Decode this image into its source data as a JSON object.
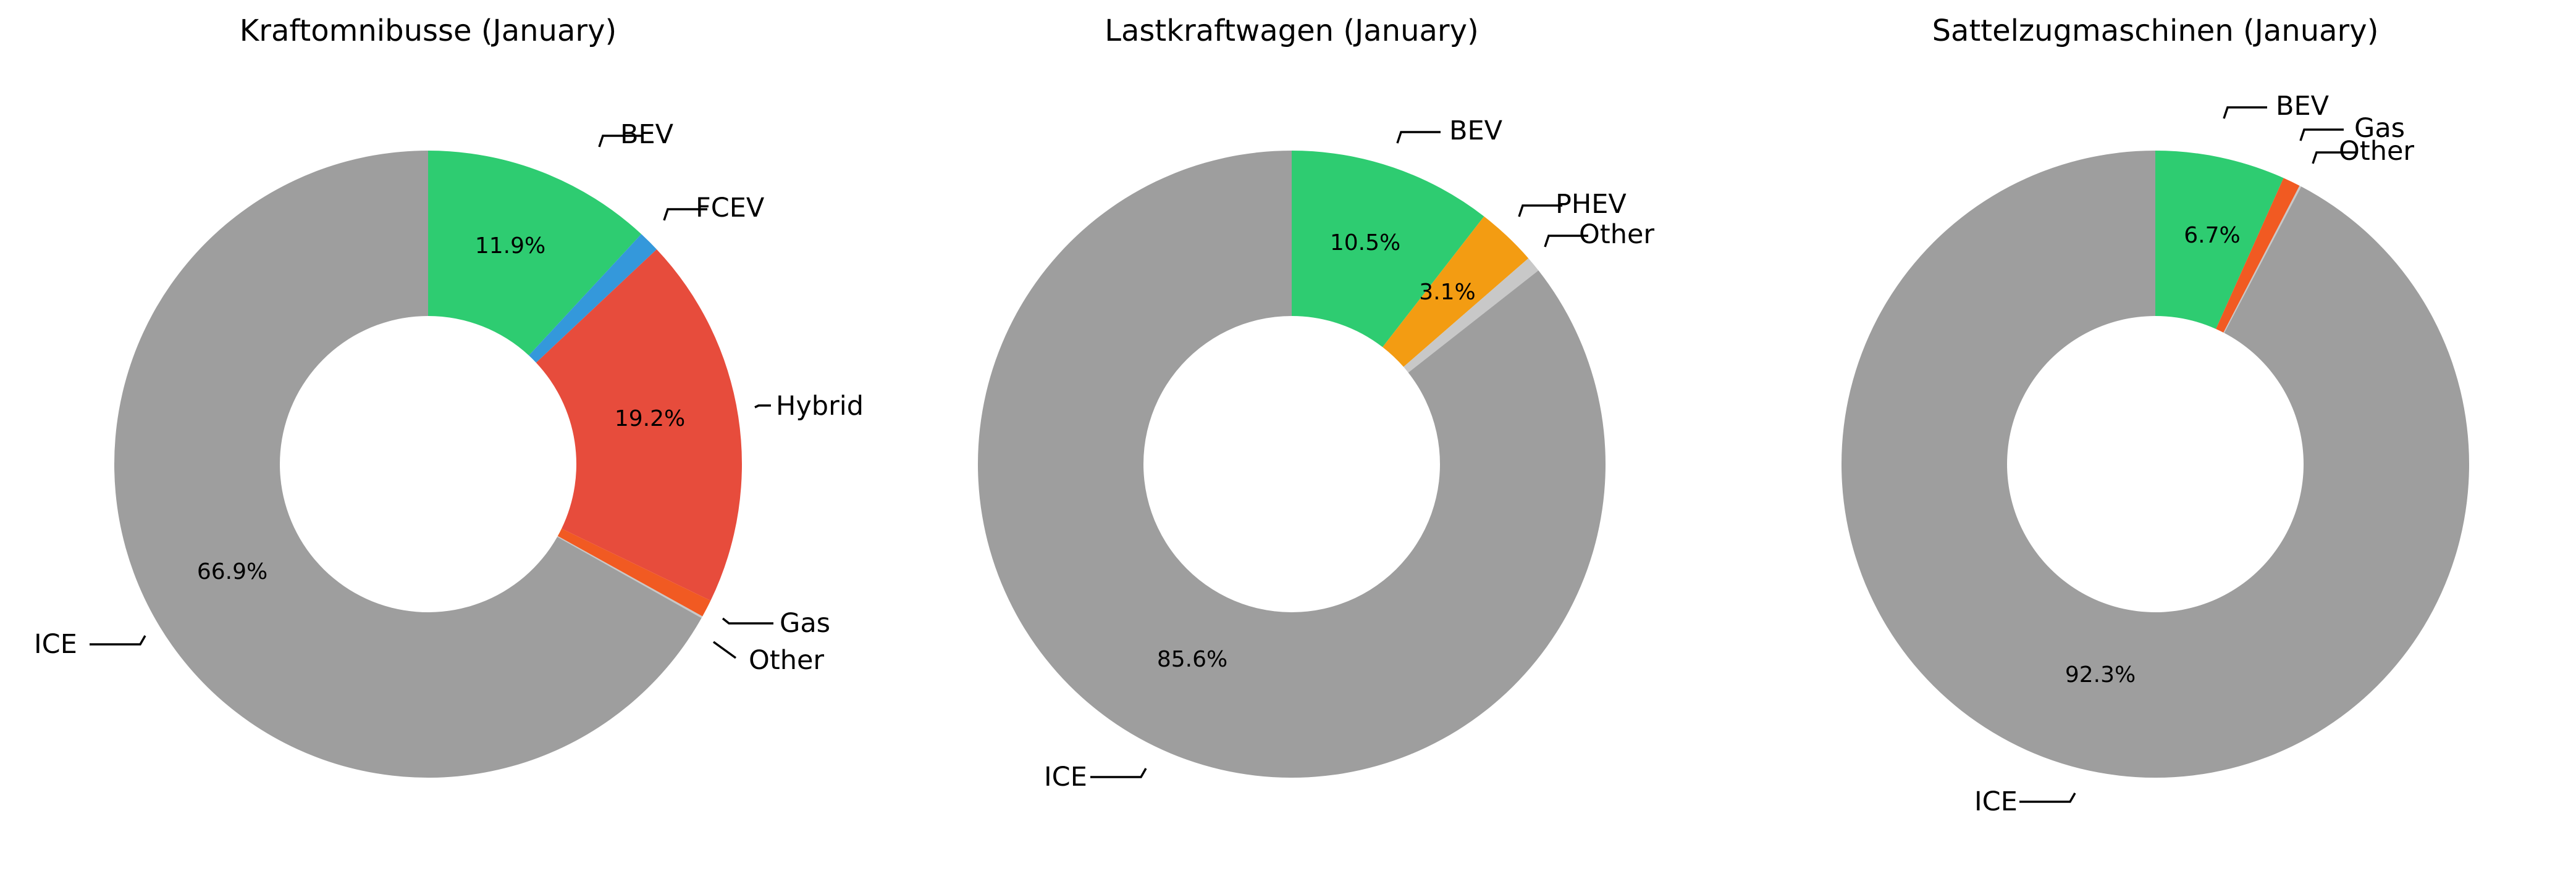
{
  "chart_data": [
    {
      "type": "pie",
      "style": "donut",
      "title": "Kraftomnibusse (January)",
      "series": [
        {
          "name": "BEV",
          "value": 11.9,
          "pct_label": "11.9%",
          "color": "#2ecc71"
        },
        {
          "name": "FCEV",
          "value": 1.1,
          "pct_label": "",
          "color": "#3498db"
        },
        {
          "name": "Hybrid",
          "value": 19.2,
          "pct_label": "19.2%",
          "color": "#e74c3c"
        },
        {
          "name": "Gas",
          "value": 0.9,
          "pct_label": "",
          "color": "#f15a22"
        },
        {
          "name": "Other",
          "value": 0.1,
          "pct_label": "",
          "color": "#c8c8c8"
        },
        {
          "name": "ICE",
          "value": 66.9,
          "pct_label": "66.9%",
          "color": "#9e9e9e"
        }
      ]
    },
    {
      "type": "pie",
      "style": "donut",
      "title": "Lastkraftwagen (January)",
      "series": [
        {
          "name": "BEV",
          "value": 10.5,
          "pct_label": "10.5%",
          "color": "#2ecc71"
        },
        {
          "name": "PHEV",
          "value": 3.1,
          "pct_label": "3.1%",
          "color": "#f39c12"
        },
        {
          "name": "Other",
          "value": 0.8,
          "pct_label": "",
          "color": "#c8c8c8"
        },
        {
          "name": "ICE",
          "value": 85.6,
          "pct_label": "85.6%",
          "color": "#9e9e9e"
        }
      ]
    },
    {
      "type": "pie",
      "style": "donut",
      "title": "Sattelzugmaschinen (January)",
      "series": [
        {
          "name": "BEV",
          "value": 6.7,
          "pct_label": "6.7%",
          "color": "#2ecc71"
        },
        {
          "name": "Gas",
          "value": 0.9,
          "pct_label": "",
          "color": "#f15a22"
        },
        {
          "name": "Other",
          "value": 0.1,
          "pct_label": "",
          "color": "#c8c8c8"
        },
        {
          "name": "ICE",
          "value": 92.3,
          "pct_label": "92.3%",
          "color": "#9e9e9e"
        }
      ]
    }
  ]
}
